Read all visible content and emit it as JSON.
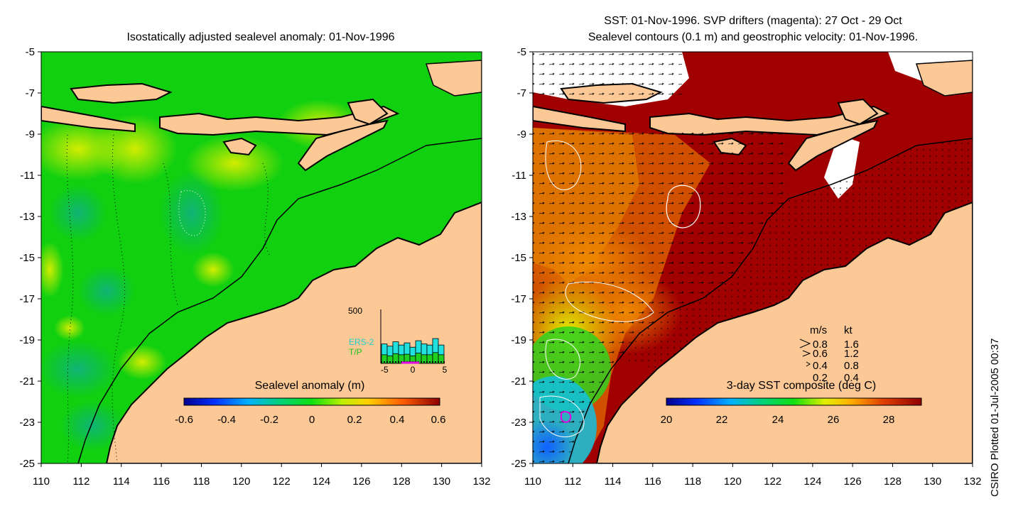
{
  "left_panel": {
    "title": "Isostatically adjusted sealevel anomaly: 01-Nov-1996",
    "colorbar_label": "Sealevel anomaly (m)",
    "colorbar_ticks": [
      "-0.6",
      "-0.4",
      "-0.2",
      "0",
      "0.2",
      "0.4",
      "0.6"
    ],
    "colorbar_range": [
      -0.6,
      0.6
    ],
    "inset": {
      "ytick": "500",
      "ymax": 500,
      "xticks": [
        "-5",
        "0",
        "5"
      ],
      "label_ers": "ERS-2",
      "label_tp": "T/P",
      "ers_counts": [
        180,
        160,
        200,
        170,
        190,
        150,
        210,
        180,
        170,
        230,
        170
      ],
      "tp_counts": [
        80,
        70,
        90,
        80,
        85,
        70,
        95,
        80,
        80,
        100,
        80
      ]
    }
  },
  "right_panel": {
    "title_line1": "SST: 01-Nov-1996. SVP drifters (magenta): 27 Oct - 29 Oct",
    "title_line2": "Sealevel contours (0.1 m) and geostrophic velocity: 01-Nov-1996.",
    "colorbar_label": "3-day SST composite (deg C)",
    "colorbar_ticks": [
      "20",
      "22",
      "24",
      "26",
      "28"
    ],
    "colorbar_range": [
      20,
      29.5
    ],
    "legend": {
      "header_ms": "m/s",
      "header_kt": "kt",
      "rows": [
        {
          "ms": "0.8",
          "kt": "1.6"
        },
        {
          "ms": "0.6",
          "kt": "1.2"
        },
        {
          "ms": "0.4",
          "kt": "0.8"
        },
        {
          "ms": "0.2",
          "kt": "0.4"
        }
      ]
    }
  },
  "axes": {
    "x_ticks": [
      "110",
      "112",
      "114",
      "116",
      "118",
      "120",
      "122",
      "124",
      "126",
      "128",
      "130",
      "132"
    ],
    "y_ticks": [
      "-5",
      "-7",
      "-9",
      "-11",
      "-13",
      "-15",
      "-17",
      "-19",
      "-21",
      "-23",
      "-25"
    ],
    "lon_range": [
      110,
      132
    ],
    "lat_range": [
      -25,
      -5
    ]
  },
  "credit": "CSIRO Plotted 01-Jul-2005 00:37",
  "colors": {
    "land": "#fbc896",
    "ocean_green": "#10d010",
    "sst_warm": "#a00000"
  }
}
